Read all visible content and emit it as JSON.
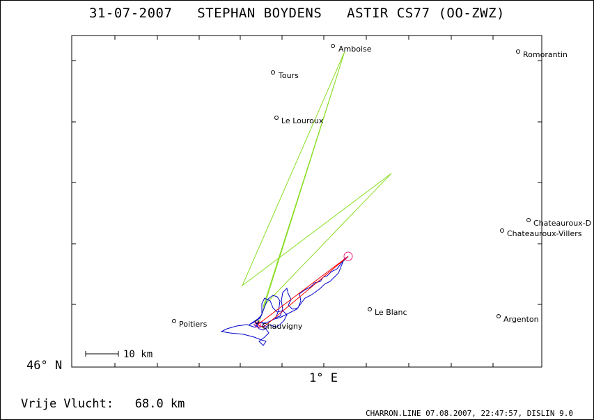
{
  "header": {
    "date": "31-07-2007",
    "pilot": "STEPHAN BOYDENS",
    "glider": "ASTIR CS77 (OO-ZWZ)"
  },
  "axes": {
    "y_label": "46° N",
    "x_label": "1° E"
  },
  "scale_bar": {
    "label": "10 km"
  },
  "footer": {
    "left": "Vrije Vlucht:   68.0 km",
    "right": "CHARRON.LINE 07.08.2007, 22:47:57, DISLIN 9.0"
  },
  "colors": {
    "frame": "#000000",
    "task": "#88dd22",
    "track": "#0000cc",
    "free_flight": "#ff0000",
    "finish": "#ee2288"
  },
  "cities": [
    {
      "name": "Amboise",
      "id": "amboise"
    },
    {
      "name": "Romorantin",
      "id": "romorantin"
    },
    {
      "name": "Tours",
      "id": "tours"
    },
    {
      "name": "Le Louroux",
      "id": "le-louroux"
    },
    {
      "name": "Chateauroux-D",
      "id": "chateauroux-d"
    },
    {
      "name": "Chateauroux-Villers",
      "id": "chateauroux-villers"
    },
    {
      "name": "Le Blanc",
      "id": "le-blanc"
    },
    {
      "name": "Argenton",
      "id": "argenton"
    },
    {
      "name": "Poitiers",
      "id": "poitiers"
    },
    {
      "name": "Chauvigny",
      "id": "chauvigny"
    }
  ]
}
